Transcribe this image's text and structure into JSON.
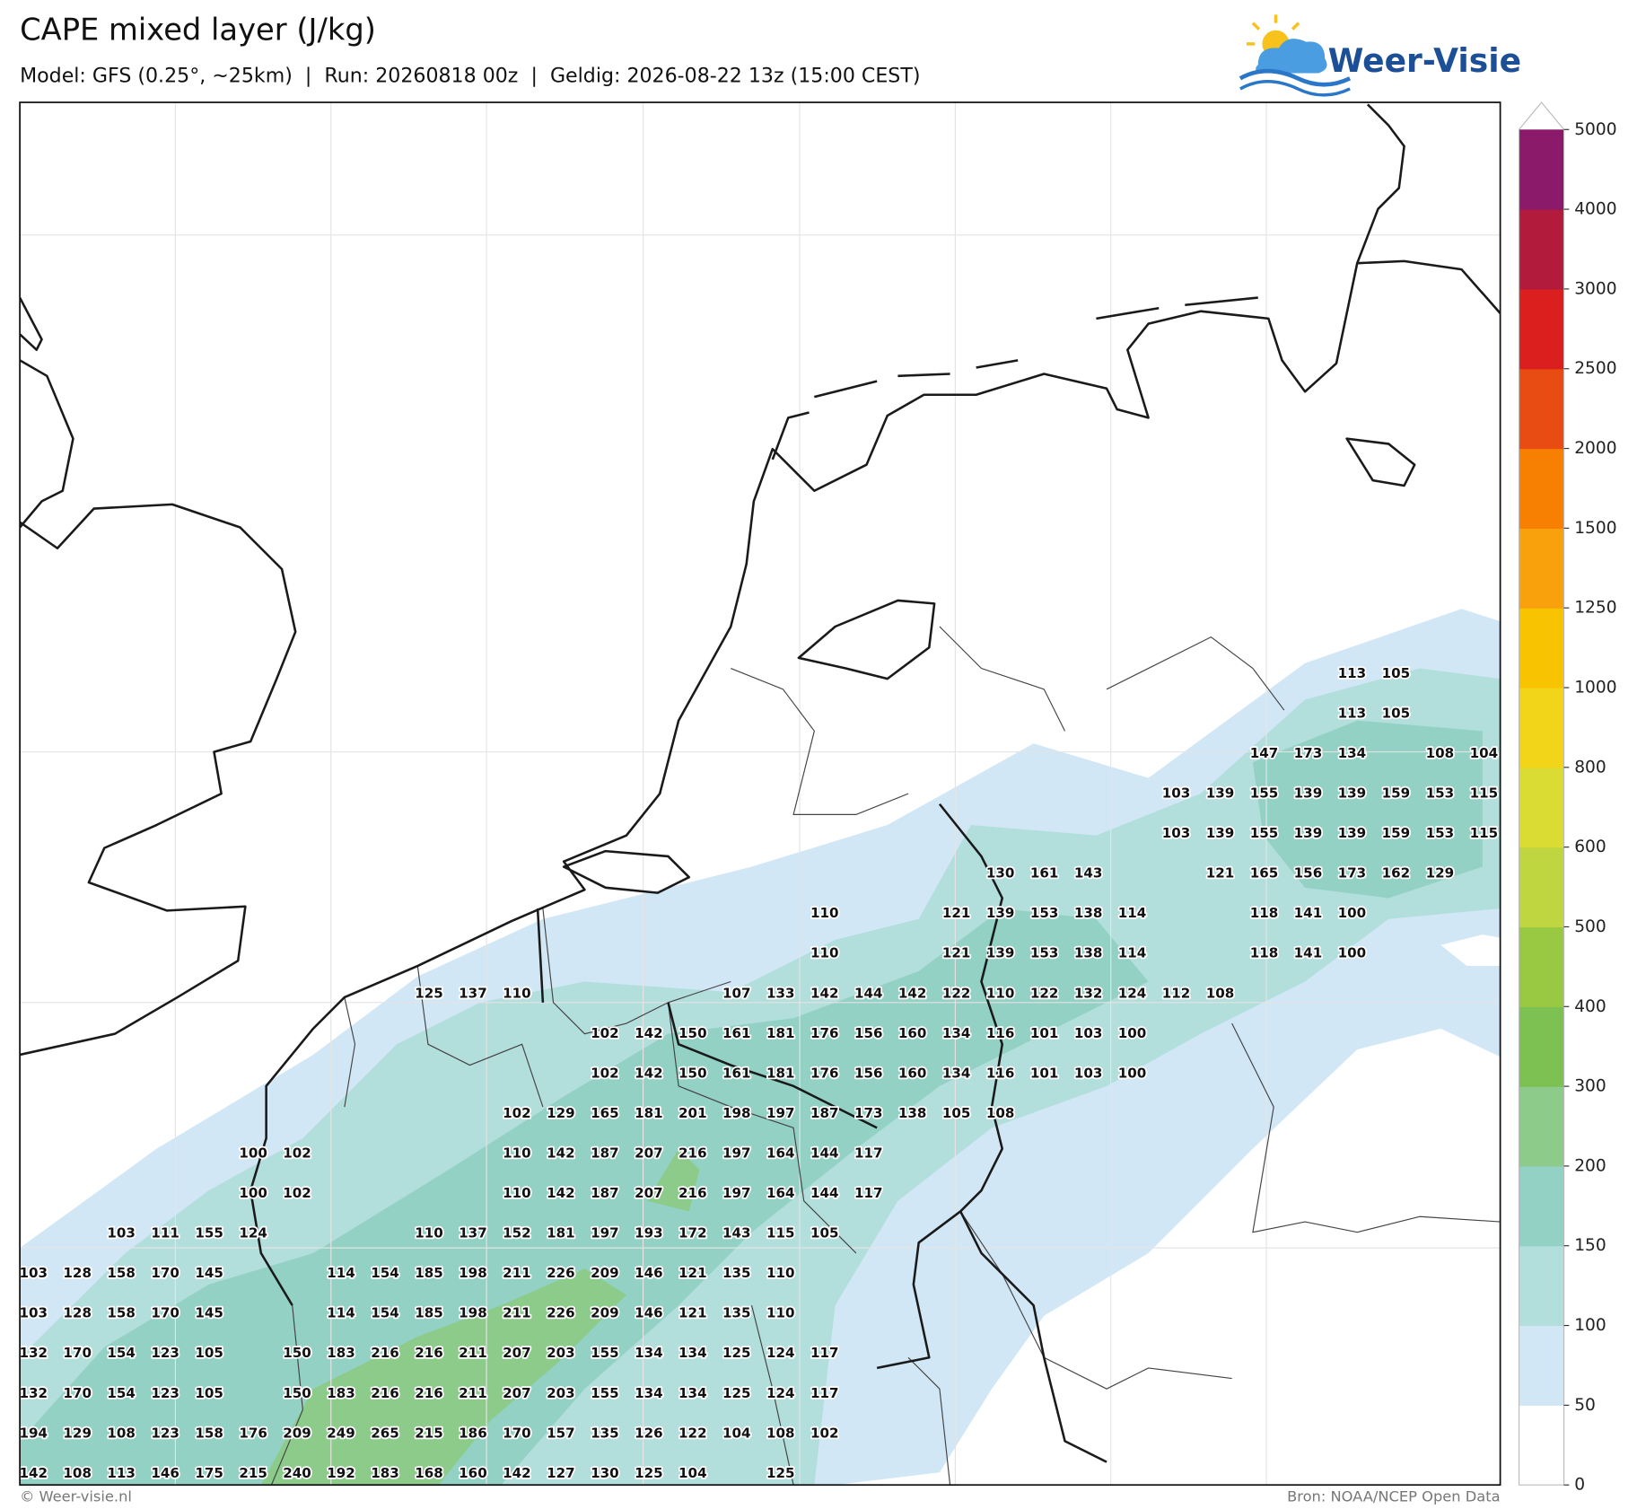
{
  "header": {
    "title": "CAPE mixed layer (J/kg)",
    "subtitle": "Model: GFS (0.25°, ~25km)  |  Run: 20260818 00z  |  Geldig: 2026-08-22 13z (15:00 CEST)",
    "logo": "Weer-Visie"
  },
  "map": {
    "grid_labels": [
      [
        null,
        null,
        null,
        null,
        null,
        null,
        null,
        null,
        null,
        null,
        null,
        null,
        null,
        null,
        null,
        null,
        null,
        null,
        null,
        null,
        null,
        null,
        null,
        null,
        null,
        null,
        null,
        null,
        null,
        null,
        113,
        105
      ],
      [
        null,
        null,
        null,
        null,
        null,
        null,
        null,
        null,
        null,
        null,
        null,
        null,
        null,
        null,
        null,
        null,
        null,
        null,
        null,
        null,
        null,
        null,
        null,
        null,
        null,
        null,
        null,
        null,
        null,
        null,
        113,
        105
      ],
      [
        null,
        null,
        null,
        null,
        null,
        null,
        null,
        null,
        null,
        null,
        null,
        null,
        null,
        null,
        null,
        null,
        null,
        null,
        null,
        null,
        null,
        null,
        null,
        null,
        null,
        null,
        null,
        null,
        147,
        173,
        134,
        null,
        108,
        104
      ],
      [
        null,
        null,
        null,
        null,
        null,
        null,
        null,
        null,
        null,
        null,
        null,
        null,
        null,
        null,
        null,
        null,
        null,
        null,
        null,
        null,
        null,
        null,
        null,
        null,
        null,
        null,
        103,
        139,
        155,
        139,
        139,
        159,
        153,
        115
      ],
      [
        null,
        null,
        null,
        null,
        null,
        null,
        null,
        null,
        null,
        null,
        null,
        null,
        null,
        null,
        null,
        null,
        null,
        null,
        null,
        null,
        null,
        null,
        null,
        null,
        null,
        null,
        103,
        139,
        155,
        139,
        139,
        159,
        153,
        115
      ],
      [
        null,
        null,
        null,
        null,
        null,
        null,
        null,
        null,
        null,
        null,
        null,
        null,
        null,
        null,
        null,
        null,
        null,
        null,
        null,
        null,
        null,
        null,
        130,
        161,
        143,
        null,
        null,
        121,
        165,
        156,
        173,
        162,
        129
      ],
      [
        null,
        null,
        null,
        null,
        null,
        null,
        null,
        null,
        null,
        null,
        null,
        null,
        null,
        null,
        null,
        null,
        null,
        null,
        110,
        null,
        null,
        121,
        139,
        153,
        138,
        114,
        null,
        null,
        118,
        141,
        100
      ],
      [
        null,
        null,
        null,
        null,
        null,
        null,
        null,
        null,
        null,
        null,
        null,
        null,
        null,
        null,
        null,
        null,
        null,
        null,
        110,
        null,
        null,
        121,
        139,
        153,
        138,
        114,
        null,
        null,
        118,
        141,
        100
      ],
      [
        null,
        null,
        null,
        null,
        null,
        null,
        null,
        null,
        null,
        125,
        137,
        110,
        null,
        null,
        null,
        null,
        107,
        133,
        142,
        144,
        142,
        122,
        110,
        122,
        132,
        124,
        112,
        108
      ],
      [
        null,
        null,
        null,
        null,
        null,
        null,
        null,
        null,
        null,
        null,
        null,
        null,
        null,
        102,
        142,
        150,
        161,
        181,
        176,
        156,
        160,
        134,
        116,
        101,
        103,
        100
      ],
      [
        null,
        null,
        null,
        null,
        null,
        null,
        null,
        null,
        null,
        null,
        null,
        null,
        null,
        102,
        142,
        150,
        161,
        181,
        176,
        156,
        160,
        134,
        116,
        101,
        103,
        100
      ],
      [
        null,
        null,
        null,
        null,
        null,
        null,
        null,
        null,
        null,
        null,
        null,
        102,
        129,
        165,
        181,
        201,
        198,
        197,
        187,
        173,
        138,
        105,
        108
      ],
      [
        null,
        null,
        null,
        null,
        null,
        100,
        102,
        null,
        null,
        null,
        null,
        110,
        142,
        187,
        207,
        216,
        197,
        164,
        144,
        117
      ],
      [
        null,
        null,
        null,
        null,
        null,
        100,
        102,
        null,
        null,
        null,
        null,
        110,
        142,
        187,
        207,
        216,
        197,
        164,
        144,
        117
      ],
      [
        null,
        null,
        103,
        111,
        155,
        124,
        null,
        null,
        null,
        110,
        137,
        152,
        181,
        197,
        193,
        172,
        143,
        115,
        105
      ],
      [
        103,
        128,
        158,
        170,
        145,
        null,
        null,
        114,
        154,
        185,
        198,
        211,
        226,
        209,
        146,
        121,
        135,
        110
      ],
      [
        103,
        128,
        158,
        170,
        145,
        null,
        null,
        114,
        154,
        185,
        198,
        211,
        226,
        209,
        146,
        121,
        135,
        110
      ],
      [
        132,
        170,
        154,
        123,
        105,
        null,
        150,
        183,
        216,
        216,
        211,
        207,
        203,
        155,
        134,
        134,
        125,
        124,
        117
      ],
      [
        132,
        170,
        154,
        123,
        105,
        null,
        150,
        183,
        216,
        216,
        211,
        207,
        203,
        155,
        134,
        134,
        125,
        124,
        117
      ],
      [
        194,
        129,
        108,
        123,
        158,
        176,
        209,
        249,
        265,
        215,
        186,
        170,
        157,
        135,
        126,
        122,
        104,
        108,
        102
      ],
      [
        142,
        108,
        113,
        146,
        175,
        215,
        240,
        192,
        183,
        168,
        160,
        142,
        127,
        130,
        125,
        104,
        null,
        125
      ]
    ]
  },
  "colorbar": {
    "ticks": [
      0,
      50,
      100,
      150,
      200,
      300,
      400,
      500,
      600,
      800,
      1000,
      1250,
      1500,
      2000,
      2500,
      3000,
      4000,
      5000
    ],
    "colors": [
      "#ffffff",
      "#d2e7f6",
      "#b2dedc",
      "#92d1c3",
      "#8ccb8a",
      "#7cc152",
      "#99c943",
      "#bfd640",
      "#dbdc33",
      "#f2d418",
      "#f8c300",
      "#f9a10d",
      "#f77f02",
      "#e84c13",
      "#db1f1e",
      "#b31b3d",
      "#8b1a6a"
    ]
  },
  "footer": {
    "left": "© Weer-visie.nl",
    "right": "Bron: NOAA/NCEP Open Data"
  }
}
